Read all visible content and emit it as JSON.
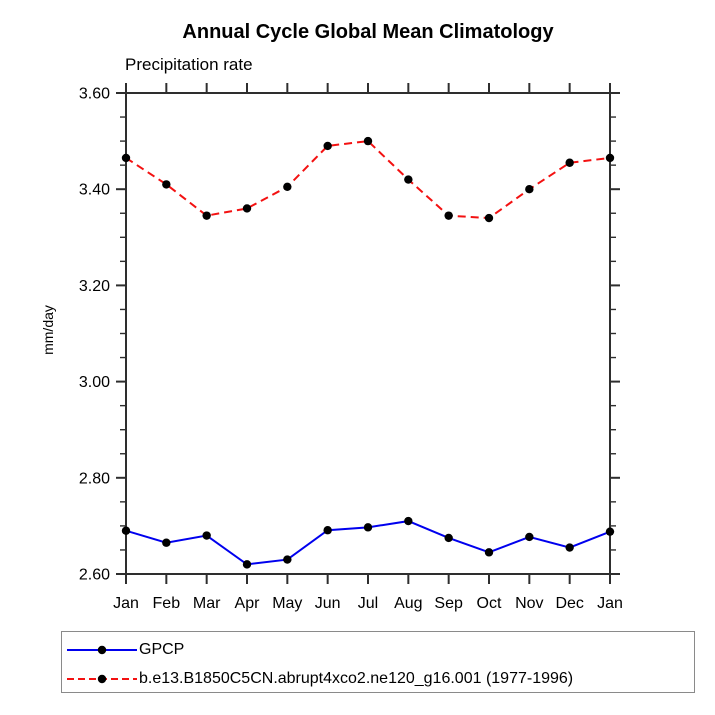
{
  "chart_data": {
    "type": "line",
    "title": "Annual Cycle Global Mean Climatology",
    "subtitle": "Precipitation rate",
    "ylabel": "mm/day",
    "xlabel": "",
    "categories": [
      "Jan",
      "Feb",
      "Mar",
      "Apr",
      "May",
      "Jun",
      "Jul",
      "Aug",
      "Sep",
      "Oct",
      "Nov",
      "Dec",
      "Jan"
    ],
    "series": [
      {
        "name": "GPCP",
        "color": "#0000ee",
        "line_style": "solid",
        "marker": "filled-circle",
        "marker_color": "#000000",
        "values": [
          2.69,
          2.665,
          2.68,
          2.62,
          2.63,
          2.691,
          2.697,
          2.71,
          2.675,
          2.645,
          2.677,
          2.655,
          2.688
        ]
      },
      {
        "name": "b.e13.B1850C5CN.abrupt4xco2.ne120_g16.001 (1977-1996)",
        "color": "#f31111",
        "line_style": "dashed",
        "marker": "filled-circle",
        "marker_color": "#000000",
        "values": [
          3.465,
          3.41,
          3.345,
          3.36,
          3.405,
          3.49,
          3.5,
          3.42,
          3.345,
          3.34,
          3.4,
          3.455,
          3.465
        ]
      }
    ],
    "ylim": [
      2.6,
      3.6
    ],
    "ytick_major_step": 0.2,
    "ytick_minor_step": 0.05,
    "ytick_labels": [
      "2.60",
      "2.80",
      "3.00",
      "3.20",
      "3.40",
      "3.60"
    ],
    "grid": false,
    "legend_position": "below-plot-left"
  },
  "style_colors": {
    "frame": "#2e2e2e",
    "tick": "#2e2e2e",
    "legend_border": "#8a8a8a"
  }
}
